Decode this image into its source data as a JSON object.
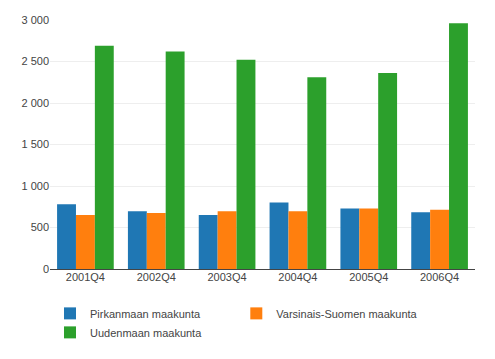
{
  "chart_data": {
    "type": "bar",
    "categories": [
      "2001Q4",
      "2002Q4",
      "2003Q4",
      "2004Q4",
      "2005Q4",
      "2006Q4"
    ],
    "series": [
      {
        "name": "Pirkanmaan maakunta",
        "values": [
          780,
          695,
          650,
          800,
          730,
          685
        ]
      },
      {
        "name": "Varsinais-Suomen maakunta",
        "values": [
          650,
          675,
          695,
          695,
          730,
          715
        ]
      },
      {
        "name": "Uudenmaan maakunta",
        "values": [
          2690,
          2620,
          2520,
          2310,
          2360,
          2960
        ]
      }
    ],
    "ylim": [
      0,
      3000
    ],
    "yticks": [
      0,
      500,
      {
        "value": 1000,
        "label": "1 000"
      },
      {
        "value": 1500,
        "label": "1 500"
      },
      {
        "value": 2000,
        "label": "2 000"
      },
      {
        "value": 2500,
        "label": "2 500"
      },
      {
        "value": 3000,
        "label": "3 000"
      }
    ],
    "grid": true,
    "legend": "bottom"
  }
}
